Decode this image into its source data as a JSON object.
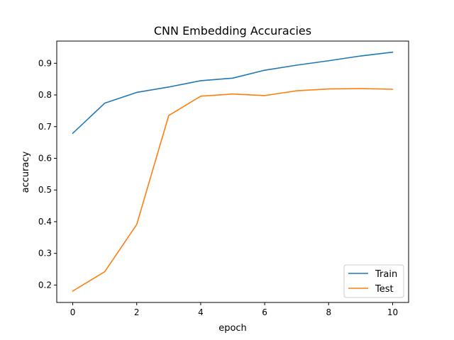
{
  "chart_data": {
    "type": "line",
    "title": "CNN Embedding Accuracies",
    "xlabel": "epoch",
    "ylabel": "accuracy",
    "xlim": [
      -0.5,
      10.5
    ],
    "ylim": [
      0.145,
      0.97
    ],
    "xticks": [
      0,
      2,
      4,
      6,
      8,
      10
    ],
    "yticks": [
      0.2,
      0.3,
      0.4,
      0.5,
      0.6,
      0.7,
      0.8,
      0.9
    ],
    "grid": false,
    "legend_position": "lower-right",
    "x": [
      0,
      1,
      2,
      3,
      4,
      5,
      6,
      7,
      8,
      9,
      10
    ],
    "series": [
      {
        "name": "Train",
        "color": "#1f77b4",
        "values": [
          0.679,
          0.774,
          0.808,
          0.825,
          0.845,
          0.853,
          0.878,
          0.894,
          0.908,
          0.923,
          0.935
        ]
      },
      {
        "name": "Test",
        "color": "#ff7f0e",
        "values": [
          0.181,
          0.242,
          0.391,
          0.735,
          0.796,
          0.803,
          0.798,
          0.813,
          0.819,
          0.82,
          0.818
        ]
      }
    ]
  }
}
